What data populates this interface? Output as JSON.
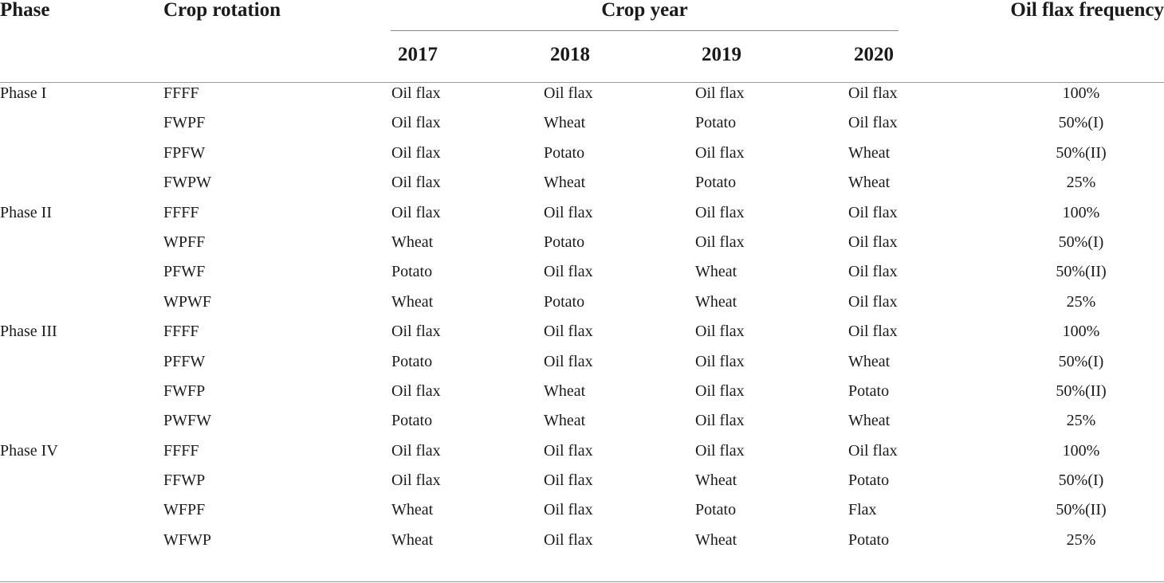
{
  "header": {
    "phase": "Phase",
    "crop_rotation": "Crop rotation",
    "crop_year": "Crop year",
    "oil_flax_frequency": "Oil flax frequency",
    "years": [
      "2017",
      "2018",
      "2019",
      "2020"
    ]
  },
  "rows": [
    {
      "phase": "Phase I",
      "rotation": "FFFF",
      "y2017": "Oil flax",
      "y2018": "Oil flax",
      "y2019": "Oil flax",
      "y2020": "Oil flax",
      "freq": "100%"
    },
    {
      "phase": "",
      "rotation": "FWPF",
      "y2017": "Oil flax",
      "y2018": "Wheat",
      "y2019": "Potato",
      "y2020": "Oil flax",
      "freq": "50%(I)"
    },
    {
      "phase": "",
      "rotation": "FPFW",
      "y2017": "Oil flax",
      "y2018": "Potato",
      "y2019": "Oil flax",
      "y2020": "Wheat",
      "freq": "50%(II)"
    },
    {
      "phase": "",
      "rotation": "FWPW",
      "y2017": "Oil flax",
      "y2018": "Wheat",
      "y2019": "Potato",
      "y2020": "Wheat",
      "freq": "25%"
    },
    {
      "phase": "Phase II",
      "rotation": "FFFF",
      "y2017": "Oil flax",
      "y2018": "Oil flax",
      "y2019": "Oil flax",
      "y2020": "Oil flax",
      "freq": "100%"
    },
    {
      "phase": "",
      "rotation": "WPFF",
      "y2017": "Wheat",
      "y2018": "Potato",
      "y2019": "Oil flax",
      "y2020": "Oil flax",
      "freq": "50%(I)"
    },
    {
      "phase": "",
      "rotation": "PFWF",
      "y2017": "Potato",
      "y2018": "Oil flax",
      "y2019": "Wheat",
      "y2020": "Oil flax",
      "freq": "50%(II)"
    },
    {
      "phase": "",
      "rotation": "WPWF",
      "y2017": "Wheat",
      "y2018": "Potato",
      "y2019": "Wheat",
      "y2020": "Oil flax",
      "freq": "25%"
    },
    {
      "phase": "Phase III",
      "rotation": "FFFF",
      "y2017": "Oil flax",
      "y2018": "Oil flax",
      "y2019": "Oil flax",
      "y2020": "Oil flax",
      "freq": "100%"
    },
    {
      "phase": "",
      "rotation": "PFFW",
      "y2017": "Potato",
      "y2018": "Oil flax",
      "y2019": "Oil flax",
      "y2020": "Wheat",
      "freq": "50%(I)"
    },
    {
      "phase": "",
      "rotation": "FWFP",
      "y2017": "Oil flax",
      "y2018": "Wheat",
      "y2019": "Oil flax",
      "y2020": "Potato",
      "freq": "50%(II)"
    },
    {
      "phase": "",
      "rotation": "PWFW",
      "y2017": "Potato",
      "y2018": "Wheat",
      "y2019": "Oil flax",
      "y2020": "Wheat",
      "freq": "25%"
    },
    {
      "phase": "Phase IV",
      "rotation": "FFFF",
      "y2017": "Oil flax",
      "y2018": "Oil flax",
      "y2019": "Oil flax",
      "y2020": "Oil flax",
      "freq": "100%"
    },
    {
      "phase": "",
      "rotation": "FFWP",
      "y2017": "Oil flax",
      "y2018": "Oil flax",
      "y2019": "Wheat",
      "y2020": "Potato",
      "freq": "50%(I)"
    },
    {
      "phase": "",
      "rotation": "WFPF",
      "y2017": "Wheat",
      "y2018": "Oil flax",
      "y2019": "Potato",
      "y2020": "Flax",
      "freq": "50%(II)"
    },
    {
      "phase": "",
      "rotation": "WFWP",
      "y2017": "Wheat",
      "y2018": "Oil flax",
      "y2019": "Wheat",
      "y2020": "Potato",
      "freq": "25%"
    }
  ]
}
